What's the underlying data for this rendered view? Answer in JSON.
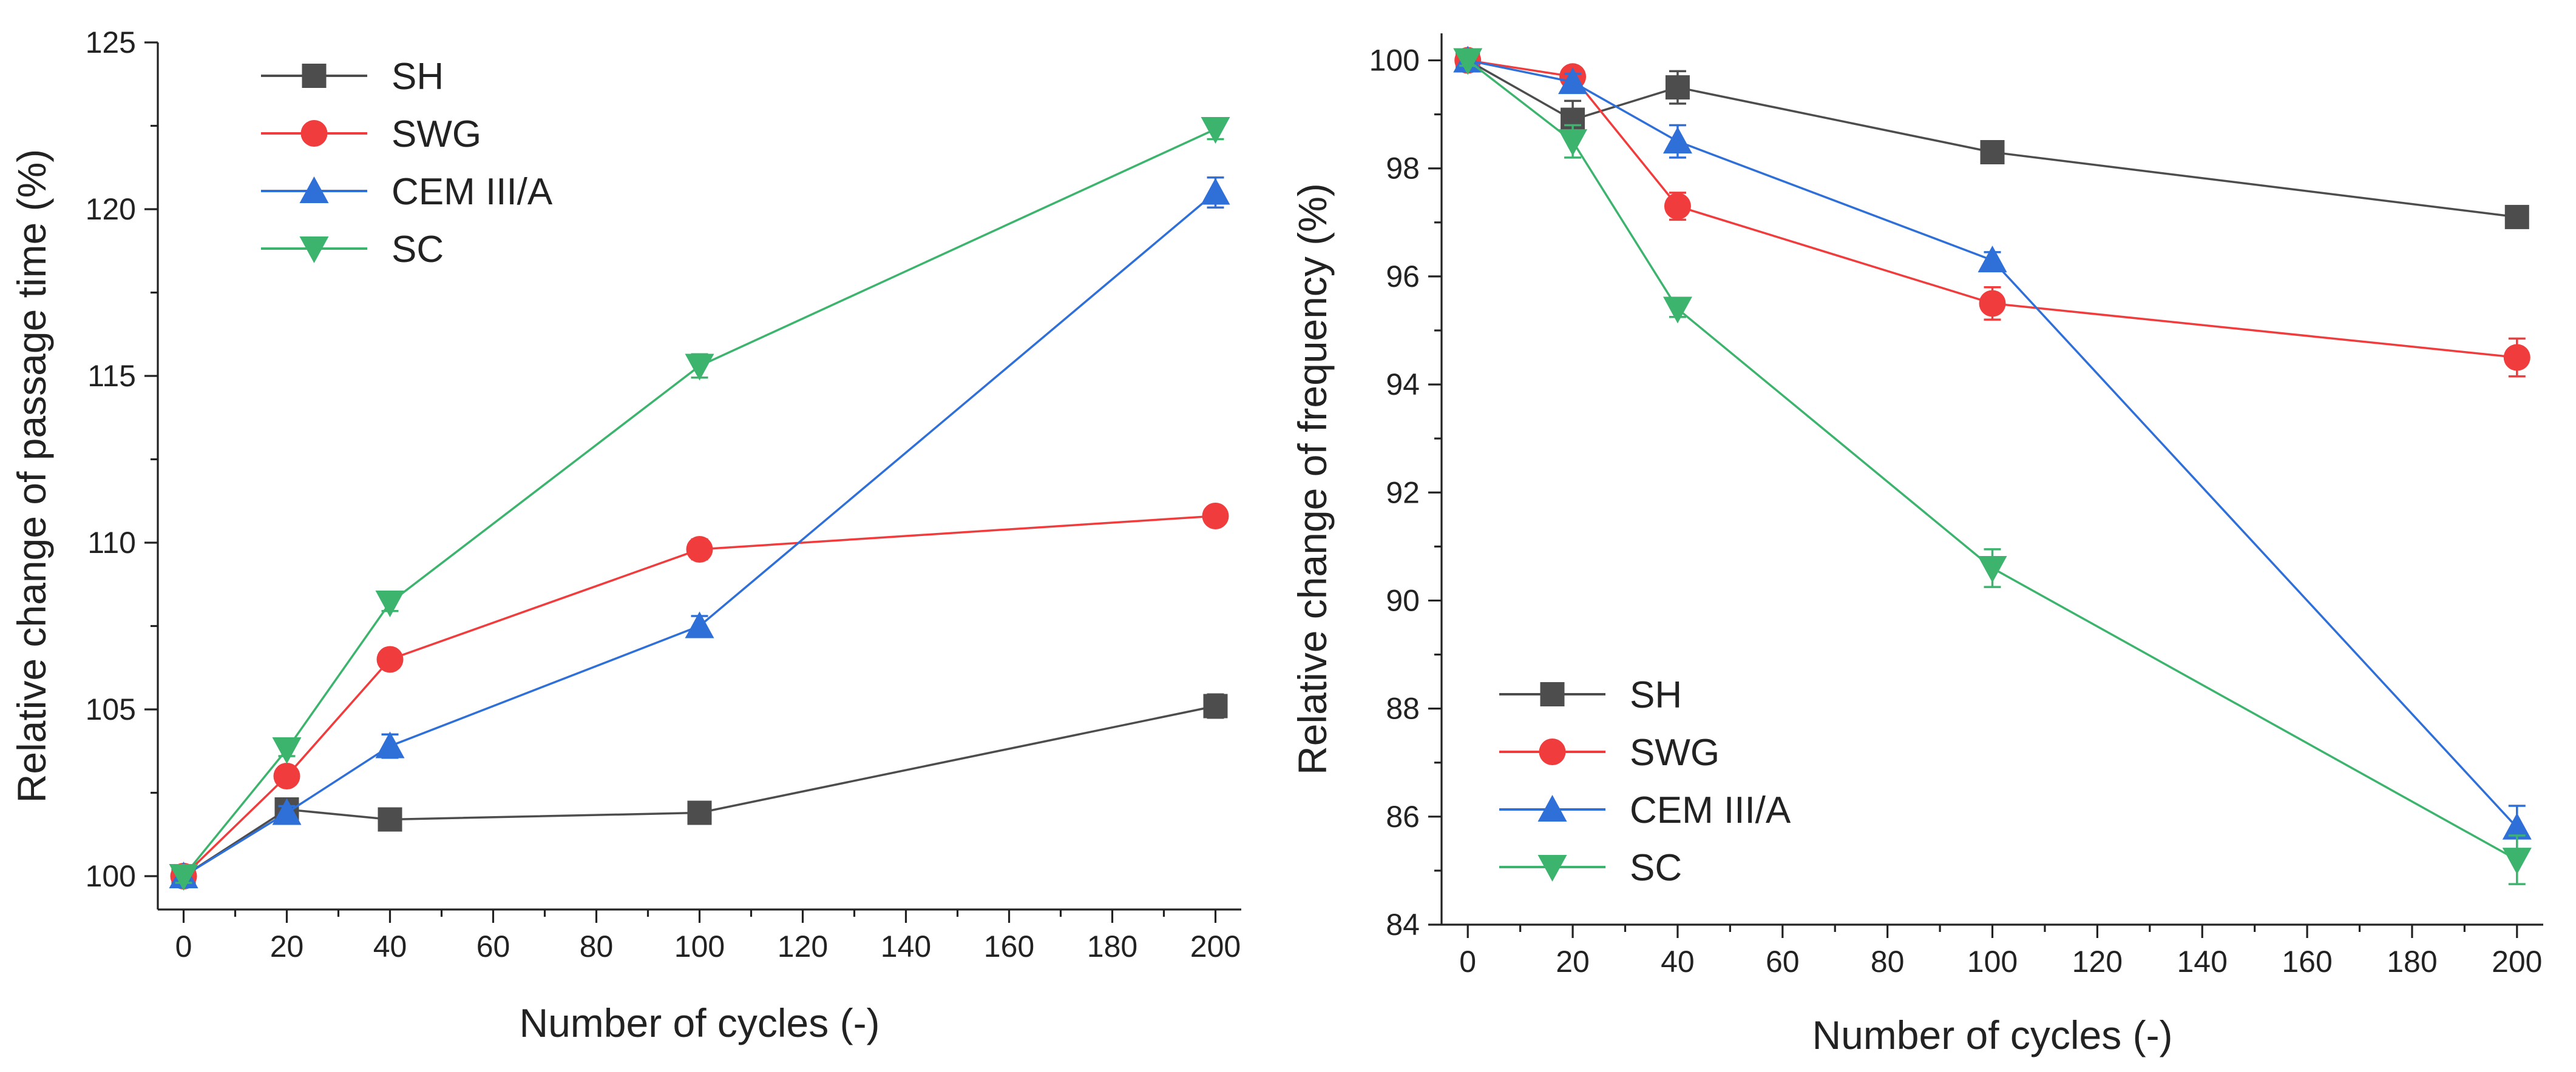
{
  "chart_data": [
    {
      "type": "line",
      "xlabel": "Number of cycles (-)",
      "ylabel": "Relative change of passage time (%)",
      "xlim": [
        -5,
        205
      ],
      "ylim": [
        99,
        125
      ],
      "xticks": [
        0,
        20,
        40,
        60,
        80,
        100,
        120,
        140,
        160,
        180,
        200
      ],
      "yticks": [
        100,
        105,
        110,
        115,
        120,
        125
      ],
      "legend_position": "top-left",
      "x": [
        0,
        20,
        40,
        100,
        200
      ],
      "series": [
        {
          "name": "SH",
          "color": "#4d4d4d",
          "marker": "square",
          "values": [
            100,
            102.0,
            101.7,
            101.9,
            105.1
          ],
          "errors": [
            0.2,
            0.2,
            0.2,
            0.2,
            0.35
          ]
        },
        {
          "name": "SWG",
          "color": "#f03c3c",
          "marker": "circle",
          "values": [
            100,
            103.0,
            106.5,
            109.8,
            110.8
          ],
          "errors": [
            0.2,
            0.2,
            0.2,
            0.3,
            0.2
          ]
        },
        {
          "name": "CEM III/A",
          "color": "#2f6fd8",
          "marker": "triangle-up",
          "values": [
            100,
            101.9,
            103.9,
            107.5,
            120.5
          ],
          "errors": [
            0.2,
            0.2,
            0.35,
            0.3,
            0.45
          ]
        },
        {
          "name": "SC",
          "color": "#3cb46e",
          "marker": "triangle-down",
          "values": [
            100,
            103.8,
            108.2,
            115.3,
            122.4
          ],
          "errors": [
            0.2,
            0.2,
            0.25,
            0.35,
            0.3
          ]
        }
      ]
    },
    {
      "type": "line",
      "xlabel": "Number of cycles (-)",
      "ylabel": "Relative change of frequency (%)",
      "xlim": [
        -5,
        205
      ],
      "ylim": [
        84,
        100.5
      ],
      "xticks": [
        0,
        20,
        40,
        60,
        80,
        100,
        120,
        140,
        160,
        180,
        200
      ],
      "yticks": [
        84,
        86,
        88,
        90,
        92,
        94,
        96,
        98,
        100
      ],
      "legend_position": "bottom-left",
      "x": [
        0,
        20,
        40,
        100,
        200
      ],
      "series": [
        {
          "name": "SH",
          "color": "#4d4d4d",
          "marker": "square",
          "values": [
            100,
            98.9,
            99.5,
            98.3,
            97.1
          ],
          "errors": [
            0.1,
            0.35,
            0.3,
            0.15,
            0.2
          ]
        },
        {
          "name": "SWG",
          "color": "#f03c3c",
          "marker": "circle",
          "values": [
            100,
            99.7,
            97.3,
            95.5,
            94.5
          ],
          "errors": [
            0.1,
            0.1,
            0.25,
            0.3,
            0.35
          ]
        },
        {
          "name": "CEM III/A",
          "color": "#2f6fd8",
          "marker": "triangle-up",
          "values": [
            100,
            99.6,
            98.5,
            96.3,
            85.8
          ],
          "errors": [
            0.1,
            0.15,
            0.3,
            0.15,
            0.4
          ]
        },
        {
          "name": "SC",
          "color": "#3cb46e",
          "marker": "triangle-down",
          "values": [
            100,
            98.5,
            95.4,
            90.6,
            85.2
          ],
          "errors": [
            0.1,
            0.3,
            0.15,
            0.35,
            0.45
          ]
        }
      ]
    }
  ]
}
